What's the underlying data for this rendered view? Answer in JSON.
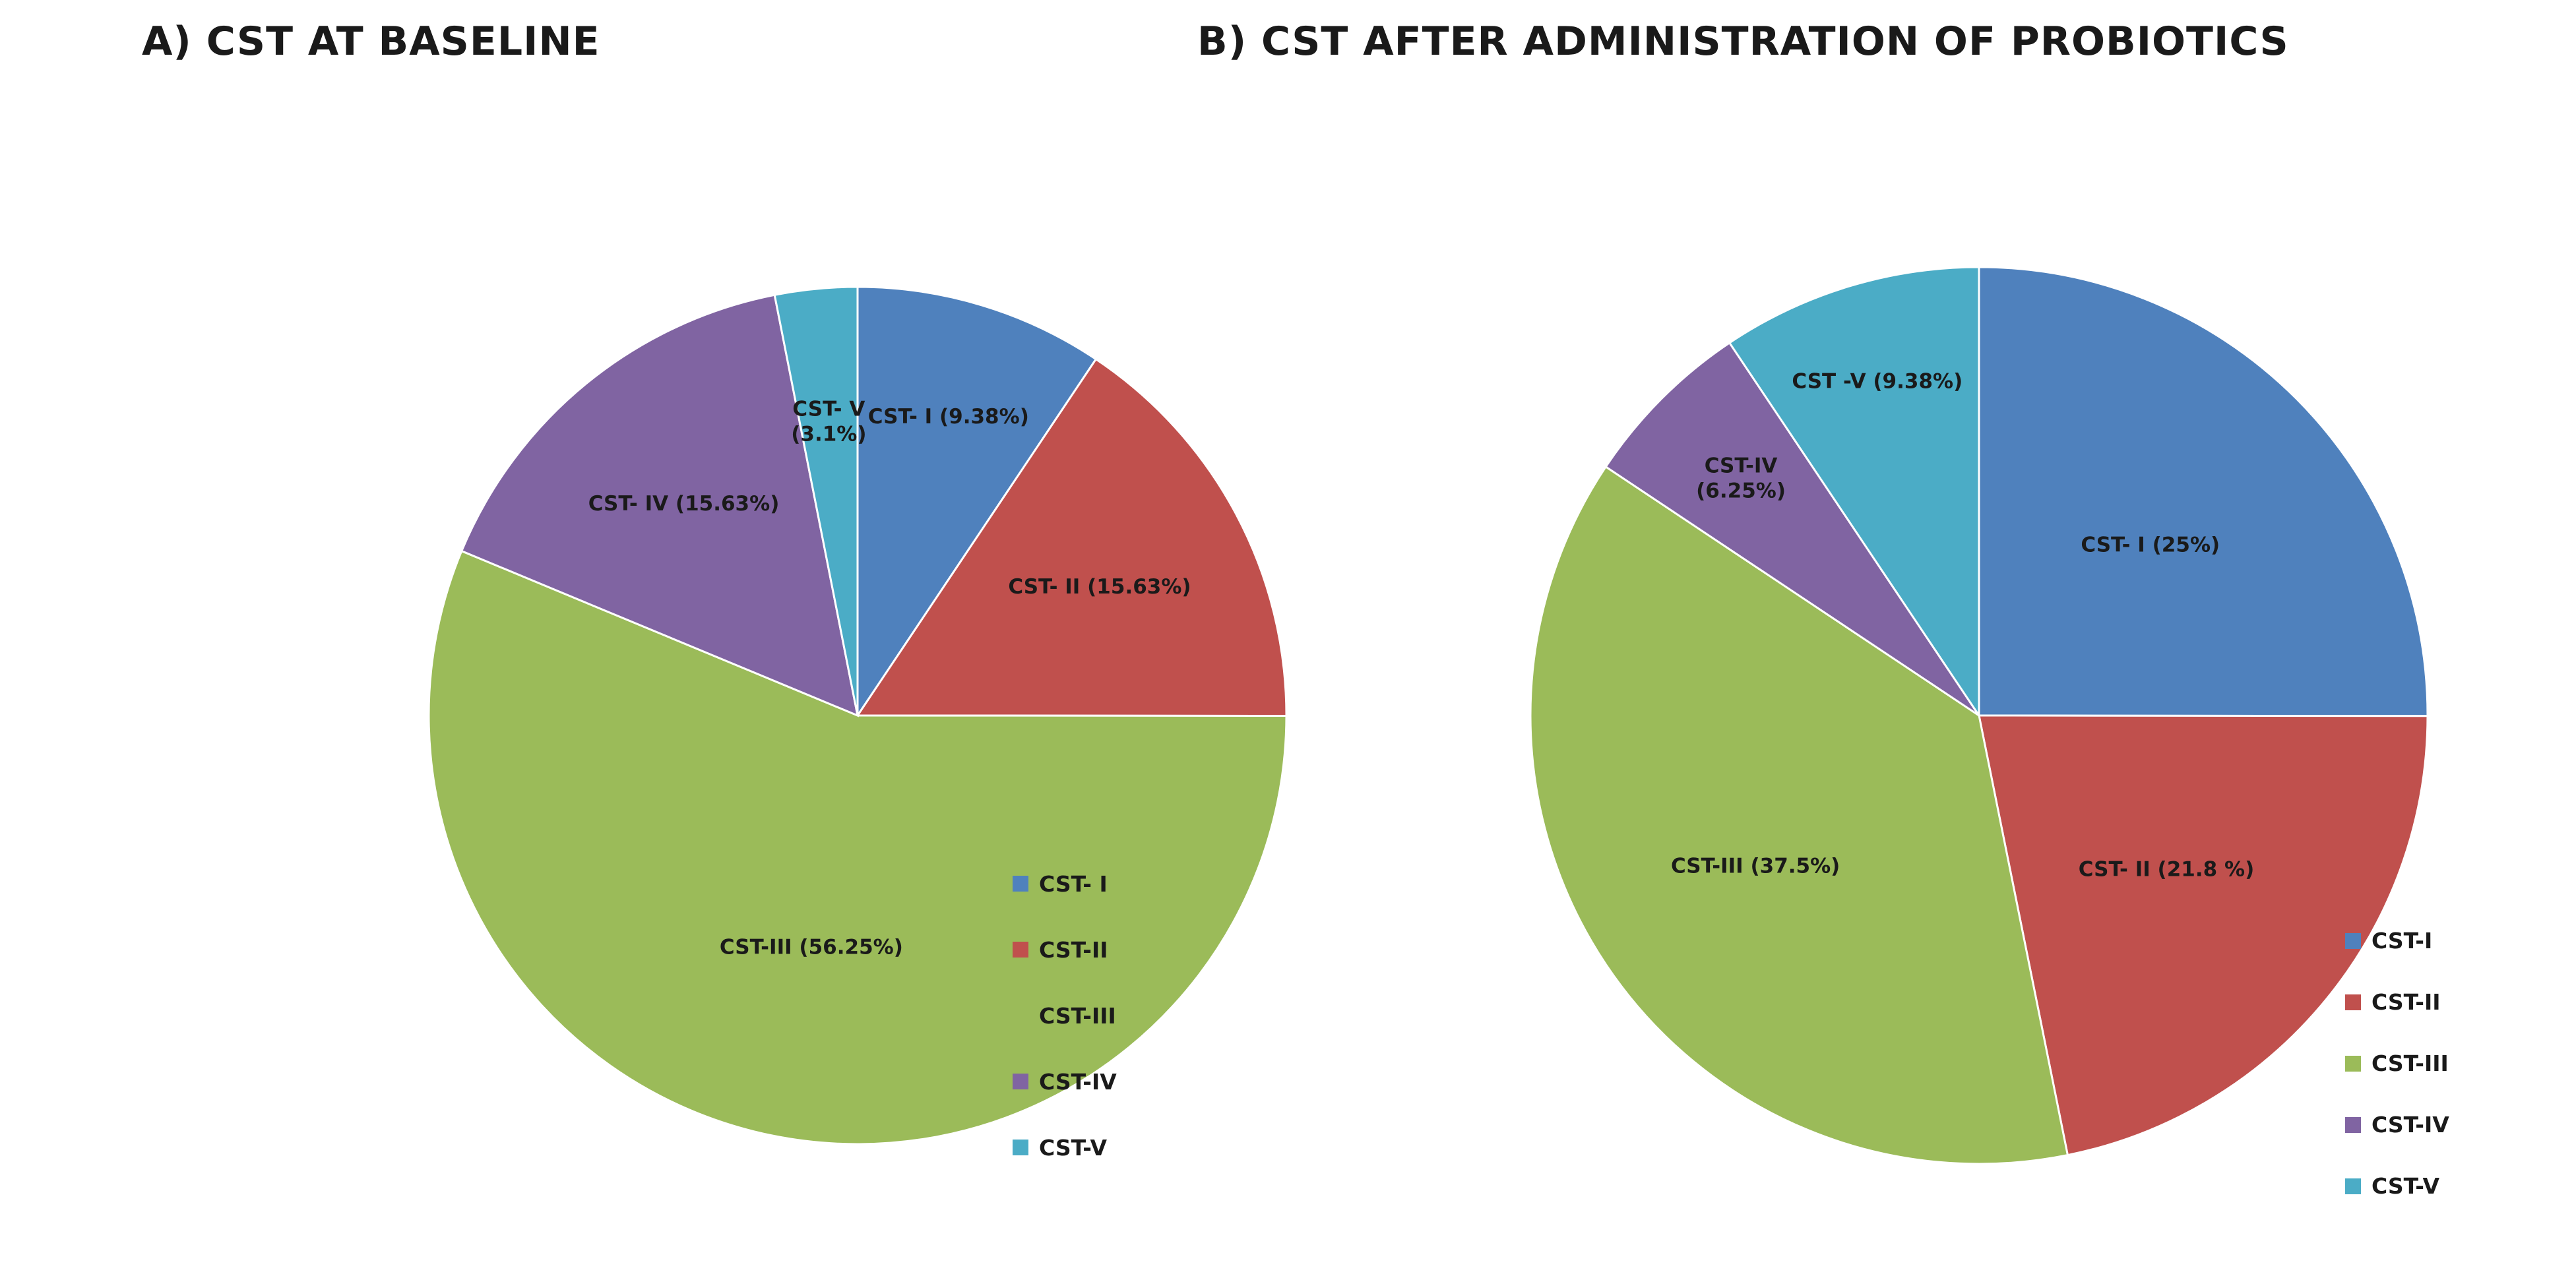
{
  "chart_data": [
    {
      "type": "pie",
      "title": "A) CST AT BASELINE",
      "slices": [
        {
          "name": "CST- I",
          "value": 9.38,
          "label_lines": [
            "CST- I (9.38%)"
          ],
          "color": "#4F81BD"
        },
        {
          "name": "CST-II",
          "value": 15.63,
          "label_lines": [
            "CST- II (15.63%)"
          ],
          "color": "#C0504D"
        },
        {
          "name": "CST-III",
          "value": 56.25,
          "label_lines": [
            "CST-III (56.25%)"
          ],
          "color": "#9BBB59"
        },
        {
          "name": "CST-IV",
          "value": 15.63,
          "label_lines": [
            "CST- IV (15.63%)"
          ],
          "color": "#8064A2"
        },
        {
          "name": "CST-V",
          "value": 3.1,
          "label_lines": [
            "CST- V",
            "(3.1%)"
          ],
          "color": "#4BACC6"
        }
      ],
      "legend": [
        "CST- I",
        "CST-II",
        "CST-III",
        "CST-IV",
        "CST-V"
      ],
      "legend_position": "right"
    },
    {
      "type": "pie",
      "title": "B) CST AFTER ADMINISTRATION OF PROBIOTICS",
      "slices": [
        {
          "name": "CST-I",
          "value": 25,
          "label_lines": [
            "CST- I (25%)"
          ],
          "color": "#4F81BD"
        },
        {
          "name": "CST-II",
          "value": 21.8,
          "label_lines": [
            "CST- II (21.8 %)"
          ],
          "color": "#C0504D"
        },
        {
          "name": "CST-III",
          "value": 37.5,
          "label_lines": [
            "CST-III  (37.5%)"
          ],
          "color": "#9BBB59"
        },
        {
          "name": "CST-IV",
          "value": 6.25,
          "label_lines": [
            "CST-IV",
            "(6.25%)"
          ],
          "color": "#8064A2"
        },
        {
          "name": "CST-V",
          "value": 9.38,
          "label_lines": [
            "CST -V (9.38%)"
          ],
          "color": "#4BACC6"
        }
      ],
      "legend": [
        "CST-I",
        "CST-II",
        "CST-III",
        "CST-IV",
        "CST-V"
      ],
      "legend_position": "right"
    }
  ]
}
